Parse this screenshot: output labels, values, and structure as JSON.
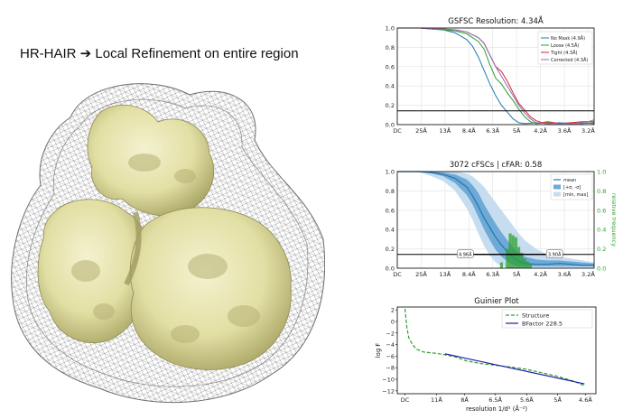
{
  "slide": {
    "title": "HR-HAIR ➔ Local Refinement on entire region"
  },
  "colors": {
    "map_fill": "#e9e7b4",
    "map_shade": "#b9b57a",
    "mesh": "#6b6b6b",
    "nomask": "#1f77b4",
    "loose": "#2ca02c",
    "tight": "#d62728",
    "corrected": "#9467bd",
    "mean": "#1f77b4",
    "band1": "#6fa9d6",
    "band2": "#c6ddf0",
    "hist": "#2ca02c",
    "struct": "#2ca02c",
    "bfactor": "#1c1cb0"
  },
  "chart_data": [
    {
      "type": "line",
      "title": "GSFSC Resolution: 4.34Å",
      "xtick_labels": [
        "DC",
        "25Å",
        "13Å",
        "8.4Å",
        "6.3Å",
        "5Å",
        "4.2Å",
        "3.6Å",
        "3.2Å"
      ],
      "xlim": [
        0,
        0.34
      ],
      "ylim": [
        0,
        1.0
      ],
      "yticks": [
        0.0,
        0.2,
        0.4,
        0.6,
        0.8,
        1.0
      ],
      "ytick_labels": [
        "0.0",
        "0.2",
        "0.4",
        "0.6",
        "0.8",
        "1.0"
      ],
      "threshold": 0.143,
      "legend_position": "top-right",
      "series": [
        {
          "name": "No Mask (4.9Å)",
          "color_key": "nomask",
          "x": [
            0,
            0.02,
            0.04,
            0.06,
            0.08,
            0.1,
            0.12,
            0.13,
            0.14,
            0.15,
            0.16,
            0.17,
            0.18,
            0.19,
            0.2,
            0.21,
            0.22,
            0.24,
            0.26,
            0.28,
            0.3,
            0.32,
            0.34
          ],
          "y": [
            1,
            1,
            1,
            0.99,
            0.98,
            0.95,
            0.88,
            0.81,
            0.7,
            0.56,
            0.42,
            0.3,
            0.2,
            0.13,
            0.06,
            0.02,
            0.01,
            0.02,
            0.01,
            0.02,
            0.01,
            0.02,
            0.01
          ]
        },
        {
          "name": "Loose (4.5Å)",
          "color_key": "loose",
          "x": [
            0,
            0.02,
            0.04,
            0.06,
            0.08,
            0.1,
            0.12,
            0.14,
            0.15,
            0.16,
            0.17,
            0.18,
            0.19,
            0.2,
            0.21,
            0.22,
            0.23,
            0.24,
            0.26,
            0.28,
            0.3,
            0.32,
            0.34
          ],
          "y": [
            1,
            1,
            1,
            0.99,
            0.98,
            0.97,
            0.94,
            0.86,
            0.78,
            0.62,
            0.48,
            0.42,
            0.33,
            0.25,
            0.16,
            0.08,
            0.03,
            0.01,
            0.02,
            0.01,
            0.02,
            0.01,
            0.02
          ]
        },
        {
          "name": "Tight (4.3Å)",
          "color_key": "tight",
          "x": [
            0,
            0.02,
            0.04,
            0.06,
            0.08,
            0.1,
            0.12,
            0.14,
            0.15,
            0.16,
            0.17,
            0.18,
            0.19,
            0.2,
            0.21,
            0.22,
            0.23,
            0.24,
            0.25,
            0.26,
            0.28,
            0.3,
            0.32,
            0.34
          ],
          "y": [
            1,
            1,
            1,
            0.99,
            0.99,
            0.98,
            0.96,
            0.9,
            0.84,
            0.72,
            0.6,
            0.55,
            0.45,
            0.33,
            0.22,
            0.15,
            0.08,
            0.04,
            0.02,
            0.03,
            0.01,
            0.02,
            0.03,
            0.03
          ]
        },
        {
          "name": "Corrected (4.3Å)",
          "color_key": "corrected",
          "x": [
            0,
            0.02,
            0.04,
            0.06,
            0.08,
            0.1,
            0.12,
            0.14,
            0.15,
            0.16,
            0.17,
            0.18,
            0.19,
            0.2,
            0.21,
            0.22,
            0.23,
            0.24,
            0.26,
            0.28,
            0.3,
            0.32,
            0.34
          ],
          "y": [
            1,
            1,
            1,
            0.99,
            0.99,
            0.98,
            0.96,
            0.9,
            0.84,
            0.72,
            0.6,
            0.5,
            0.4,
            0.3,
            0.2,
            0.12,
            0.06,
            0.02,
            0.01,
            0.01,
            0.01,
            0.01,
            0.05
          ]
        }
      ]
    },
    {
      "type": "area",
      "title": "3072 cFSCs | cFAR: 0.58",
      "xtick_labels": [
        "DC",
        "25Å",
        "13Å",
        "8.4Å",
        "6.3Å",
        "5Å",
        "4.2Å",
        "3.6Å",
        "3.2Å"
      ],
      "xlim": [
        0,
        0.34
      ],
      "ylim": [
        0,
        1.0
      ],
      "yticks": [
        0.0,
        0.2,
        0.4,
        0.6,
        0.8,
        1.0
      ],
      "ytick_labels": [
        "0.0",
        "0.2",
        "0.4",
        "0.6",
        "0.8",
        "1.0"
      ],
      "y2_label": "relative frequency",
      "y2ticks": [
        0.0,
        0.2,
        0.4,
        0.6,
        0.8,
        1.0
      ],
      "y2tick_labels": [
        "0.0",
        "0.2",
        "0.4",
        "0.6",
        "0.8",
        "1.0"
      ],
      "threshold": 0.143,
      "legend_position": "top-right",
      "legend": [
        "mean",
        "[+σ, -σ]",
        "[min, max]"
      ],
      "range_labels": [
        "4.96Å",
        "3.90Å"
      ],
      "range_x": [
        0.133,
        0.256
      ],
      "x": [
        0,
        0.02,
        0.04,
        0.06,
        0.08,
        0.1,
        0.12,
        0.13,
        0.14,
        0.15,
        0.16,
        0.17,
        0.18,
        0.19,
        0.2,
        0.21,
        0.22,
        0.24,
        0.26,
        0.28,
        0.3,
        0.32,
        0.34
      ],
      "mean": [
        1,
        1,
        1,
        0.99,
        0.97,
        0.93,
        0.84,
        0.75,
        0.64,
        0.52,
        0.42,
        0.32,
        0.24,
        0.17,
        0.11,
        0.07,
        0.05,
        0.04,
        0.04,
        0.05,
        0.04,
        0.03,
        0.03
      ],
      "sd_low": [
        1,
        1,
        1,
        0.98,
        0.95,
        0.88,
        0.76,
        0.66,
        0.53,
        0.4,
        0.29,
        0.19,
        0.12,
        0.07,
        0.03,
        0.02,
        0.02,
        0.02,
        0.02,
        0.02,
        0.02,
        0.02,
        0.02
      ],
      "sd_high": [
        1,
        1,
        1,
        1,
        0.99,
        0.97,
        0.92,
        0.86,
        0.78,
        0.66,
        0.56,
        0.46,
        0.37,
        0.29,
        0.22,
        0.16,
        0.12,
        0.09,
        0.08,
        0.08,
        0.07,
        0.06,
        0.05
      ],
      "min": [
        1,
        1,
        0.99,
        0.95,
        0.9,
        0.8,
        0.62,
        0.5,
        0.36,
        0.23,
        0.13,
        0.06,
        0.02,
        0.01,
        0,
        0,
        0,
        0,
        0,
        0,
        0,
        0,
        0
      ],
      "max": [
        1,
        1,
        1,
        1,
        1,
        1,
        0.98,
        0.95,
        0.9,
        0.84,
        0.76,
        0.68,
        0.6,
        0.52,
        0.44,
        0.36,
        0.29,
        0.2,
        0.14,
        0.12,
        0.1,
        0.08,
        0.06
      ],
      "histogram": {
        "x": [
          0.18,
          0.19,
          0.195,
          0.2,
          0.205,
          0.21,
          0.215,
          0.22,
          0.225,
          0.23
        ],
        "freq": [
          0.06,
          0.2,
          0.36,
          0.34,
          0.32,
          0.22,
          0.16,
          0.1,
          0.07,
          0.04
        ]
      }
    },
    {
      "type": "line",
      "title": "Guinier Plot",
      "xlabel": "resolution 1/d² (Å⁻²)",
      "ylabel": "log F",
      "xtick_labels": [
        "DC",
        "11Å",
        "8Å",
        "6.5Å",
        "5.6Å",
        "5Å",
        "4.6Å"
      ],
      "xticks_q": [
        0,
        0.00826,
        0.01563,
        0.02367,
        0.03189,
        0.04,
        0.04726
      ],
      "xlim": [
        -0.002,
        0.05
      ],
      "ylim": [
        -12.5,
        2.5
      ],
      "yticks": [
        2,
        0,
        -2,
        -4,
        -6,
        -8,
        -10,
        -12
      ],
      "ytick_labels": [
        "2",
        "0",
        "−2",
        "−4",
        "−6",
        "−8",
        "−10",
        "−12"
      ],
      "legend_position": "top-right",
      "series": [
        {
          "name": "Structure",
          "color_key": "struct",
          "dashed": true,
          "x": [
            0,
            0.0005,
            0.001,
            0.002,
            0.003,
            0.005,
            0.008,
            0.01,
            0.013,
            0.016,
            0.02,
            0.024,
            0.028,
            0.032,
            0.036,
            0.04,
            0.044,
            0.047
          ],
          "y": [
            2.2,
            -1.0,
            -2.8,
            -4.0,
            -4.8,
            -5.3,
            -5.5,
            -5.7,
            -6.1,
            -6.8,
            -7.3,
            -7.6,
            -7.9,
            -8.3,
            -8.9,
            -9.5,
            -10.3,
            -11.1
          ]
        },
        {
          "name": "BFactor 228.5",
          "color_key": "bfactor",
          "dashed": false,
          "x": [
            0.0105,
            0.047
          ],
          "y": [
            -5.6,
            -10.8
          ]
        }
      ]
    }
  ]
}
